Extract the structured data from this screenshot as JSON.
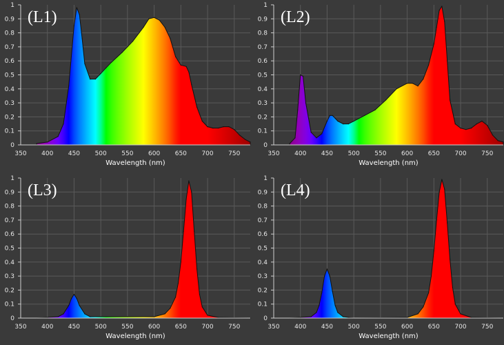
{
  "chart_data": [
    {
      "type": "area",
      "title": "(L1)",
      "xlabel": "Wavelength (nm)",
      "ylabel": "",
      "xlim": [
        350,
        780
      ],
      "ylim": [
        0,
        1
      ],
      "grid": true,
      "fill": "visible-spectrum-gradient",
      "xticks": [
        "350",
        "400",
        "450",
        "500",
        "550",
        "600",
        "650",
        "700",
        "750"
      ],
      "yticks": [
        "0",
        "0.1",
        "0.2",
        "0.3",
        "0.4",
        "0.5",
        "0.6",
        "0.7",
        "0.8",
        "0.9",
        "1"
      ],
      "x": [
        380,
        400,
        420,
        430,
        440,
        450,
        455,
        460,
        465,
        470,
        480,
        490,
        500,
        510,
        520,
        540,
        560,
        580,
        590,
        600,
        610,
        620,
        630,
        640,
        650,
        660,
        665,
        670,
        680,
        690,
        700,
        710,
        720,
        730,
        740,
        750,
        760,
        770,
        780
      ],
      "y": [
        0.01,
        0.02,
        0.06,
        0.15,
        0.42,
        0.85,
        0.98,
        0.93,
        0.76,
        0.58,
        0.47,
        0.47,
        0.51,
        0.55,
        0.59,
        0.66,
        0.74,
        0.84,
        0.9,
        0.91,
        0.89,
        0.84,
        0.76,
        0.63,
        0.57,
        0.56,
        0.52,
        0.43,
        0.27,
        0.17,
        0.13,
        0.12,
        0.12,
        0.13,
        0.13,
        0.11,
        0.07,
        0.04,
        0.02
      ]
    },
    {
      "type": "area",
      "title": "(L2)",
      "xlabel": "Wavelength (nm)",
      "ylabel": "",
      "xlim": [
        350,
        780
      ],
      "ylim": [
        0,
        1
      ],
      "grid": true,
      "fill": "visible-spectrum-gradient",
      "xticks": [
        "350",
        "400",
        "450",
        "500",
        "550",
        "600",
        "650",
        "700",
        "750"
      ],
      "yticks": [
        "0",
        "0.1",
        "0.2",
        "0.3",
        "0.4",
        "0.5",
        "0.6",
        "0.7",
        "0.8",
        "0.9",
        "1"
      ],
      "x": [
        380,
        390,
        395,
        400,
        405,
        410,
        420,
        430,
        440,
        450,
        455,
        460,
        465,
        470,
        480,
        490,
        500,
        520,
        540,
        560,
        580,
        600,
        610,
        620,
        630,
        640,
        650,
        655,
        660,
        665,
        670,
        675,
        680,
        690,
        700,
        710,
        720,
        730,
        740,
        750,
        760,
        770,
        780
      ],
      "y": [
        0.01,
        0.05,
        0.25,
        0.5,
        0.49,
        0.3,
        0.09,
        0.05,
        0.08,
        0.17,
        0.21,
        0.21,
        0.19,
        0.17,
        0.15,
        0.15,
        0.17,
        0.21,
        0.25,
        0.32,
        0.4,
        0.44,
        0.44,
        0.42,
        0.47,
        0.57,
        0.72,
        0.84,
        0.96,
        0.99,
        0.88,
        0.6,
        0.32,
        0.15,
        0.12,
        0.11,
        0.12,
        0.15,
        0.17,
        0.14,
        0.07,
        0.03,
        0.02
      ]
    },
    {
      "type": "area",
      "title": "(L3)",
      "xlabel": "Wavelength (nm)",
      "ylabel": "",
      "xlim": [
        350,
        780
      ],
      "ylim": [
        0,
        1
      ],
      "grid": true,
      "fill": "visible-spectrum-gradient",
      "xticks": [
        "350",
        "400",
        "450",
        "500",
        "550",
        "600",
        "650",
        "700",
        "750"
      ],
      "yticks": [
        "0",
        "0.1",
        "0.2",
        "0.3",
        "0.4",
        "0.5",
        "0.6",
        "0.7",
        "0.8",
        "0.9",
        "1"
      ],
      "x": [
        380,
        420,
        430,
        440,
        445,
        450,
        455,
        460,
        470,
        480,
        500,
        550,
        600,
        620,
        630,
        640,
        645,
        650,
        655,
        660,
        665,
        670,
        675,
        680,
        685,
        690,
        700,
        720,
        780
      ],
      "y": [
        0.0,
        0.01,
        0.03,
        0.09,
        0.14,
        0.17,
        0.14,
        0.09,
        0.03,
        0.01,
        0.01,
        0.01,
        0.01,
        0.03,
        0.07,
        0.15,
        0.25,
        0.4,
        0.62,
        0.85,
        0.98,
        0.9,
        0.62,
        0.35,
        0.17,
        0.08,
        0.02,
        0.005,
        0.0
      ]
    },
    {
      "type": "area",
      "title": "(L4)",
      "xlabel": "Wavelength (nm)",
      "ylabel": "",
      "xlim": [
        350,
        780
      ],
      "ylim": [
        0,
        1
      ],
      "grid": true,
      "fill": "visible-spectrum-gradient",
      "xticks": [
        "350",
        "400",
        "450",
        "500",
        "550",
        "600",
        "650",
        "700",
        "750"
      ],
      "yticks": [
        "0",
        "0.1",
        "0.2",
        "0.3",
        "0.4",
        "0.5",
        "0.6",
        "0.7",
        "0.8",
        "0.9",
        "1"
      ],
      "x": [
        380,
        420,
        430,
        435,
        440,
        445,
        450,
        455,
        460,
        465,
        470,
        480,
        490,
        500,
        600,
        620,
        630,
        640,
        645,
        650,
        655,
        660,
        665,
        670,
        675,
        680,
        685,
        690,
        700,
        720,
        780
      ],
      "y": [
        0.0,
        0.01,
        0.04,
        0.09,
        0.18,
        0.3,
        0.35,
        0.3,
        0.19,
        0.09,
        0.04,
        0.01,
        0.005,
        0.0,
        0.005,
        0.03,
        0.08,
        0.18,
        0.3,
        0.48,
        0.7,
        0.9,
        0.99,
        0.92,
        0.68,
        0.42,
        0.22,
        0.1,
        0.03,
        0.005,
        0.0
      ]
    }
  ]
}
